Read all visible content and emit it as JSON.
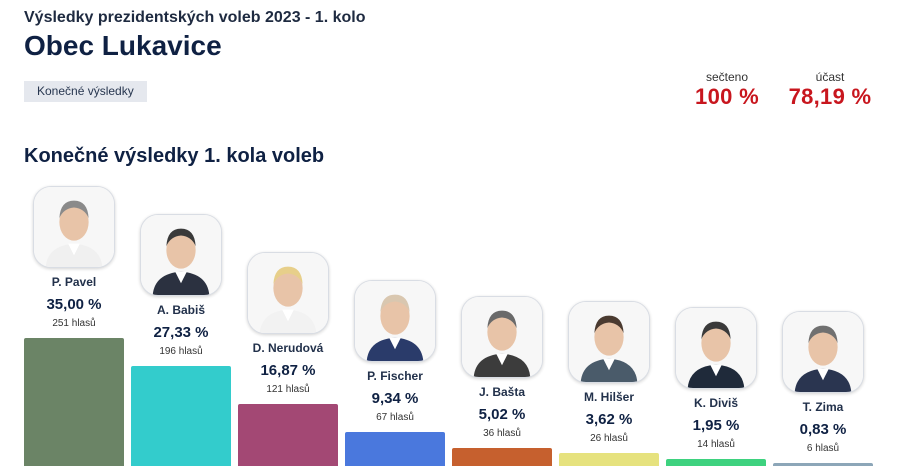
{
  "header": {
    "subtitle": "Výsledky prezidentských voleb 2023 - 1. kolo",
    "title": "Obec Lukavice",
    "status_label": "Konečné výsledky"
  },
  "stats": {
    "counted_label": "sečteno",
    "counted_value": "100 %",
    "turnout_label": "účast",
    "turnout_value": "78,19 %"
  },
  "section_title": "Konečné výsledky 1. kola voleb",
  "chart_data": {
    "type": "bar",
    "title": "Konečné výsledky 1. kola voleb",
    "categories": [
      "P. Pavel",
      "A. Babiš",
      "D. Nerudová",
      "P. Fischer",
      "J. Bašta",
      "M. Hilšer",
      "K. Diviš",
      "T. Zima"
    ],
    "values": [
      35.0,
      27.33,
      16.87,
      9.34,
      5.02,
      3.62,
      1.95,
      0.83
    ],
    "votes": [
      251,
      196,
      121,
      67,
      36,
      26,
      14,
      6
    ],
    "colors": [
      "#6b8466",
      "#33cccc",
      "#a34874",
      "#4a78dd",
      "#c6602e",
      "#e6e27e",
      "#3ed27f",
      "#8ca6b8"
    ]
  },
  "candidates": [
    {
      "name": "P. Pavel",
      "pct": "35,00 %",
      "votes": "251 hlasů",
      "color": "#6b8466"
    },
    {
      "name": "A. Babiš",
      "pct": "27,33 %",
      "votes": "196 hlasů",
      "color": "#33cccc"
    },
    {
      "name": "D. Nerudová",
      "pct": "16,87 %",
      "votes": "121 hlasů",
      "color": "#a34874"
    },
    {
      "name": "P. Fischer",
      "pct": "9,34 %",
      "votes": "67 hlasů",
      "color": "#4a78dd"
    },
    {
      "name": "J. Bašta",
      "pct": "5,02 %",
      "votes": "36 hlasů",
      "color": "#c6602e"
    },
    {
      "name": "M. Hilšer",
      "pct": "3,62 %",
      "votes": "26 hlasů",
      "color": "#e6e27e"
    },
    {
      "name": "K. Diviš",
      "pct": "1,95 %",
      "votes": "14 hlasů",
      "color": "#3ed27f"
    },
    {
      "name": "T. Zima",
      "pct": "0,83 %",
      "votes": "6 hlasů",
      "color": "#8ca6b8"
    }
  ]
}
